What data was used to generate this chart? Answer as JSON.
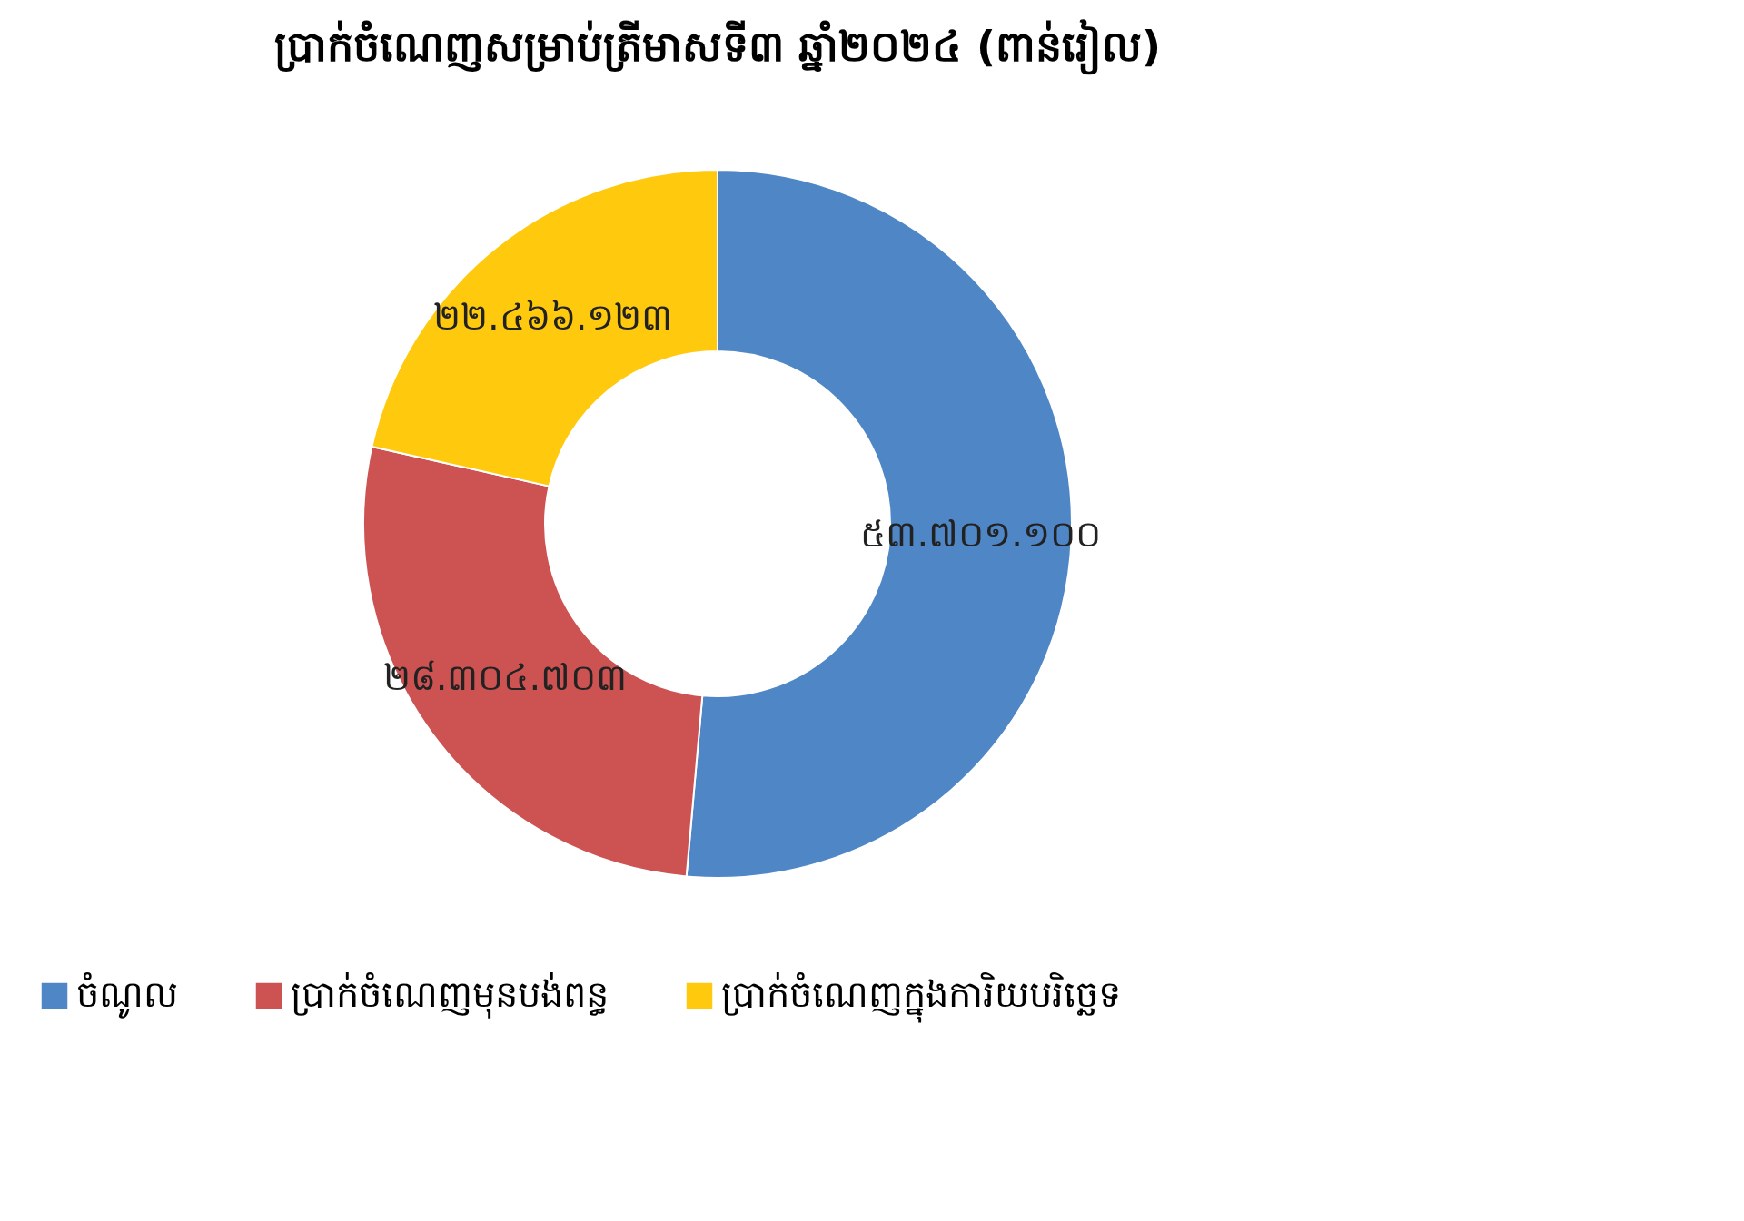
{
  "chart_data": {
    "type": "donut",
    "title": "ប្រាក់ចំណេញសម្រាប់ត្រីមាសទី៣ ឆ្នាំ២០២៤ (ពាន់រៀល)",
    "categories": [
      "ចំណូល",
      "ប្រាក់ចំណេញមុនបង់ពន្ធ",
      "ប្រាក់ចំណេញក្នុងការិយបរិច្ឆេទ"
    ],
    "values": [
      53701100,
      28304703,
      22466123
    ],
    "value_labels": [
      "៥៣.៧០១.១០០",
      "២៨.៣០៤.៧០៣",
      "២២.៤៦៦.១២៣"
    ],
    "colors": [
      "#4f86c6",
      "#cd5353",
      "#ffc90e"
    ],
    "legend": "bottom"
  }
}
